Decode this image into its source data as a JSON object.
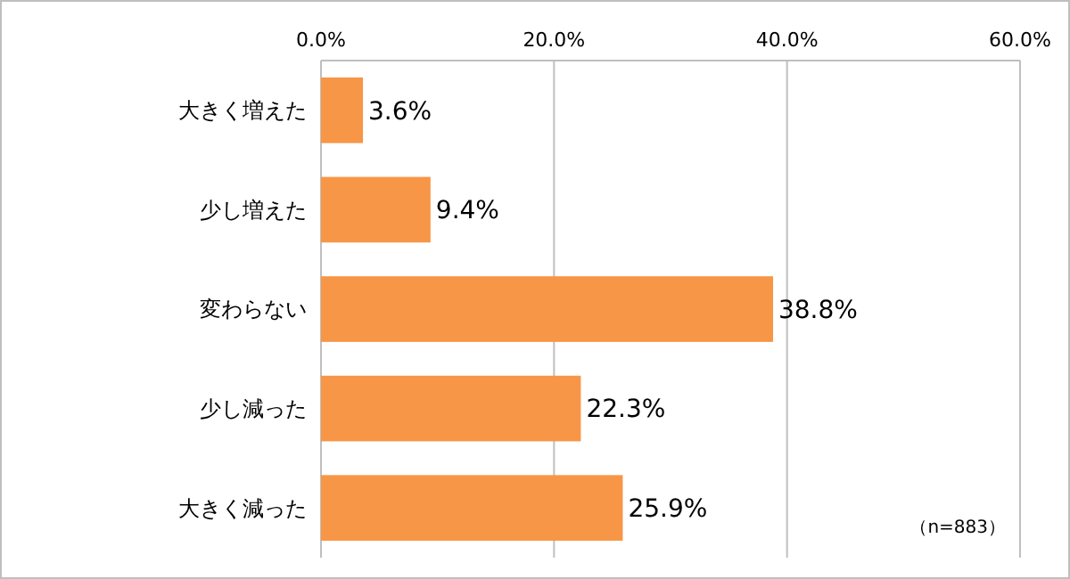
{
  "chart_data": {
    "type": "bar",
    "orientation": "horizontal",
    "categories": [
      "大きく増えた",
      "少し増えた",
      "変わらない",
      "少し減った",
      "大きく減った"
    ],
    "values": [
      3.6,
      9.4,
      38.8,
      22.3,
      25.9
    ],
    "color": "#f79646",
    "value_labels": [
      "3.6%",
      "9.4%",
      "38.8%",
      "22.3%",
      "25.9%"
    ],
    "xlim": [
      0,
      60
    ],
    "xticks": [
      {
        "value": 0,
        "label": "0.0%"
      },
      {
        "value": 20,
        "label": "20.0%"
      },
      {
        "value": 40,
        "label": "40.0%"
      },
      {
        "value": 60,
        "label": "60.0%"
      }
    ],
    "grid": "x",
    "annotations": [
      "（n=883）"
    ]
  }
}
